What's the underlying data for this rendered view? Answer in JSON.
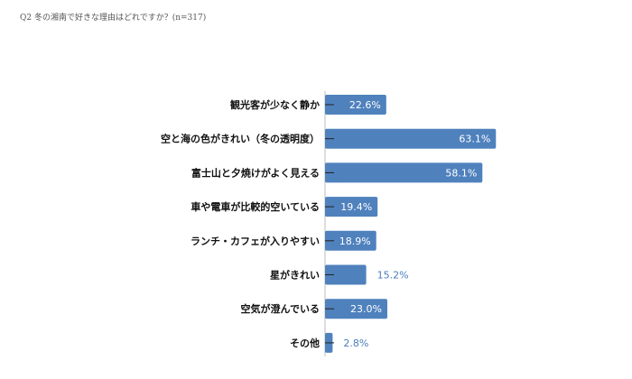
{
  "chart_data": {
    "type": "bar",
    "orientation": "horizontal",
    "title": "Q2 冬の湘南で好きな理由はどれですか？(n=317)",
    "categories": [
      "観光客が少なく静か",
      "空と海の色がきれい（冬の透明度）",
      "富士山と夕焼けがよく見える",
      "車や電車が比較的空いている",
      "ランチ・カフェが入りやすい",
      "星がきれい",
      "空気が澄んでいる",
      "その他"
    ],
    "values": [
      22.6,
      63.1,
      58.1,
      19.4,
      18.9,
      15.2,
      23.0,
      2.8
    ],
    "value_labels": [
      "22.6%",
      "63.1%",
      "58.1%",
      "19.4%",
      "18.9%",
      "15.2%",
      "23.0%",
      "2.8%"
    ],
    "xlim": [
      0,
      100
    ],
    "grid": false,
    "legend": "none",
    "bar_color": "#4f81bd"
  }
}
